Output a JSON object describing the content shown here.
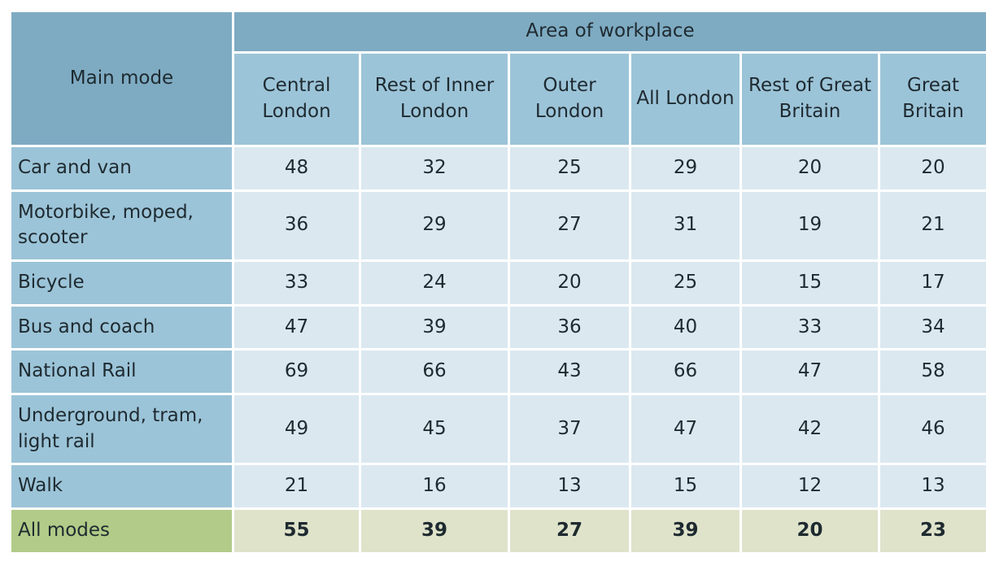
{
  "chart_data": {
    "type": "table",
    "corner_label": "Main mode",
    "group_label": "Area of workplace",
    "columns": [
      "Central London",
      "Rest of Inner London",
      "Outer London",
      "All London",
      "Rest of Great Britain",
      "Great Britain"
    ],
    "rows": [
      {
        "label": "Car and van",
        "values": [
          48,
          32,
          25,
          29,
          20,
          20
        ]
      },
      {
        "label": "Motorbike, moped, scooter",
        "values": [
          36,
          29,
          27,
          31,
          19,
          21
        ]
      },
      {
        "label": "Bicycle",
        "values": [
          33,
          24,
          20,
          25,
          15,
          17
        ]
      },
      {
        "label": "Bus and coach",
        "values": [
          47,
          39,
          36,
          40,
          33,
          34
        ]
      },
      {
        "label": "National Rail",
        "values": [
          69,
          66,
          43,
          66,
          47,
          58
        ]
      },
      {
        "label": "Underground, tram, light rail",
        "values": [
          49,
          45,
          37,
          47,
          42,
          46
        ]
      },
      {
        "label": "Walk",
        "values": [
          21,
          16,
          13,
          15,
          12,
          13
        ]
      },
      {
        "label": "All modes",
        "values": [
          55,
          39,
          27,
          39,
          20,
          23
        ]
      }
    ]
  }
}
